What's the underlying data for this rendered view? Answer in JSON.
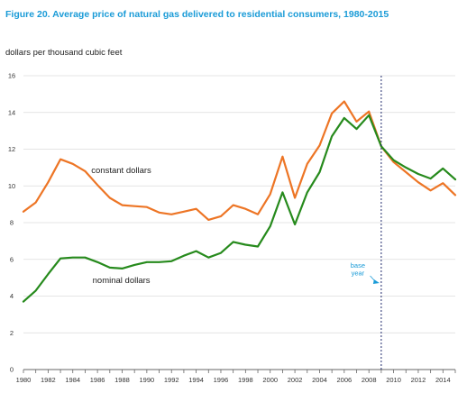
{
  "figure": {
    "title": "Figure 20.  Average price of natural gas delivered to residential consumers, 1980-2015"
  },
  "chart_data": {
    "type": "line",
    "ylabel": "dollars per thousand cubic feet",
    "xlabel": "",
    "ylim": [
      0,
      16
    ],
    "xlim": [
      1980,
      2015
    ],
    "yticks": [
      0,
      2,
      4,
      6,
      8,
      10,
      12,
      14,
      16
    ],
    "xticks": [
      1980,
      1982,
      1984,
      1986,
      1988,
      1990,
      1992,
      1994,
      1996,
      1998,
      2000,
      2002,
      2004,
      2006,
      2008,
      2010,
      2012,
      2014
    ],
    "grid": true,
    "x": [
      1980,
      1981,
      1982,
      1983,
      1984,
      1985,
      1986,
      1987,
      1988,
      1989,
      1990,
      1991,
      1992,
      1993,
      1994,
      1995,
      1996,
      1997,
      1998,
      1999,
      2000,
      2001,
      2002,
      2003,
      2004,
      2005,
      2006,
      2007,
      2008,
      2009,
      2010,
      2011,
      2012,
      2013,
      2014,
      2015
    ],
    "series": [
      {
        "name": "constant dollars",
        "color": "#ed7525",
        "values": [
          8.6,
          9.1,
          10.2,
          11.45,
          11.2,
          10.8,
          10.05,
          9.35,
          8.95,
          8.9,
          8.85,
          8.55,
          8.45,
          8.6,
          8.75,
          8.15,
          8.35,
          8.95,
          8.75,
          8.45,
          9.55,
          11.6,
          9.35,
          11.2,
          12.2,
          13.95,
          14.6,
          13.5,
          14.05,
          12.15,
          11.3,
          10.75,
          10.2,
          9.75,
          10.15,
          9.5
        ]
      },
      {
        "name": "nominal dollars",
        "color": "#268a1c",
        "values": [
          3.7,
          4.3,
          5.2,
          6.05,
          6.1,
          6.1,
          5.85,
          5.55,
          5.5,
          5.7,
          5.85,
          5.85,
          5.9,
          6.2,
          6.45,
          6.1,
          6.35,
          6.95,
          6.8,
          6.7,
          7.8,
          9.65,
          7.9,
          9.65,
          10.75,
          12.7,
          13.7,
          13.1,
          13.85,
          12.15,
          11.4,
          11.0,
          10.65,
          10.4,
          10.95,
          10.35
        ]
      }
    ],
    "annotations": [
      {
        "text_lines": [
          "base",
          "year"
        ],
        "target_x": 2009,
        "color": "#1a9bd7"
      }
    ],
    "base_year": 2009
  }
}
